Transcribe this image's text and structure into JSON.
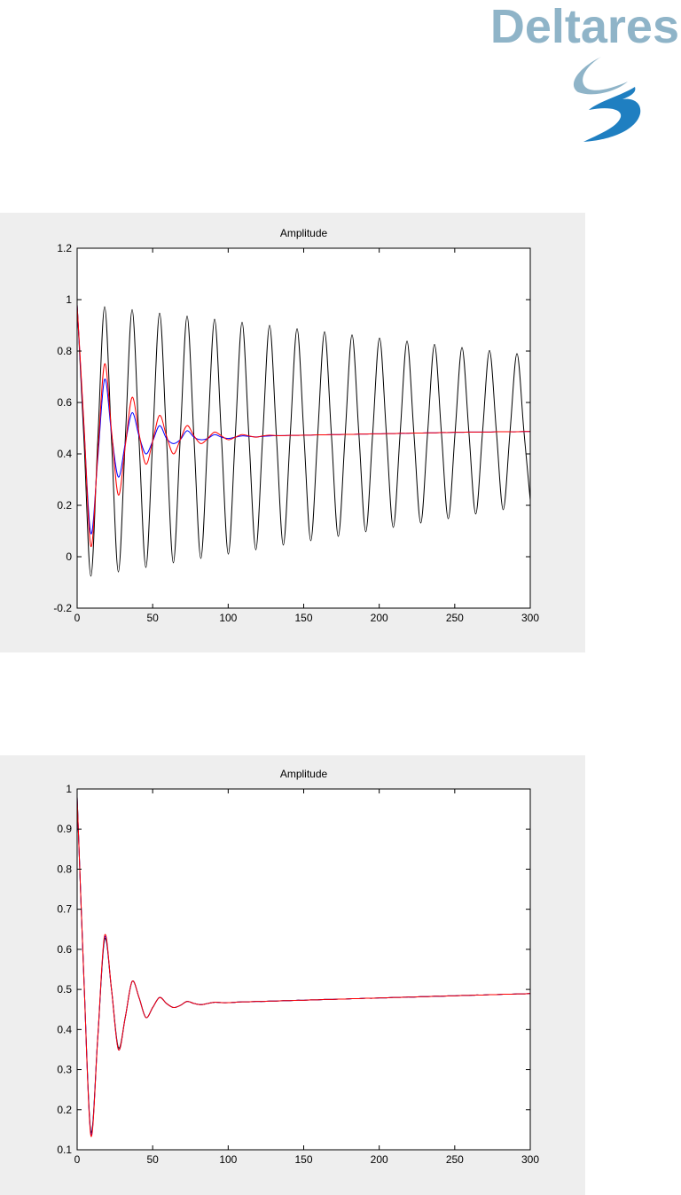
{
  "logo": {
    "text": "Deltares"
  },
  "chart_data": [
    {
      "type": "line",
      "title": "Amplitude",
      "x": [
        0,
        4.55,
        9.1,
        13.65,
        18.2,
        22.75,
        27.3,
        31.85,
        36.4,
        40.95,
        45.5,
        50.05,
        54.6,
        59.15,
        63.7,
        68.25,
        72.8,
        77.35,
        81.9,
        86.45,
        91,
        95.55,
        100.1,
        104.65,
        109.2,
        113.75,
        118.3,
        122.85,
        127.4,
        131.95,
        136.5,
        141.05,
        145.6,
        150.15,
        154.7,
        159.25,
        163.8,
        168.35,
        172.9,
        177.45,
        182,
        186.55,
        191.1,
        195.65,
        200.2,
        204.75,
        209.3,
        213.85,
        218.4,
        222.95,
        227.5,
        232.05,
        236.6,
        241.15,
        245.7,
        250.25,
        254.8,
        259.35,
        263.9,
        268.45,
        273,
        277.55,
        282.1,
        286.65,
        291.2,
        295.75,
        300
      ],
      "series": [
        {
          "color": "#000000",
          "values": [
            0.98,
            0.451,
            -0.076,
            0.452,
            0.973,
            0.453,
            -0.059,
            0.454,
            0.961,
            0.456,
            -0.042,
            0.457,
            0.948,
            0.458,
            -0.024,
            0.46,
            0.936,
            0.461,
            -0.007,
            0.462,
            0.924,
            0.463,
            0.01,
            0.465,
            0.912,
            0.466,
            0.027,
            0.467,
            0.9,
            0.468,
            0.045,
            0.47,
            0.887,
            0.471,
            0.062,
            0.472,
            0.875,
            0.474,
            0.079,
            0.475,
            0.863,
            0.476,
            0.097,
            0.477,
            0.851,
            0.479,
            0.114,
            0.48,
            0.839,
            0.481,
            0.131,
            0.482,
            0.826,
            0.484,
            0.148,
            0.485,
            0.814,
            0.486,
            0.166,
            0.488,
            0.802,
            0.489,
            0.183,
            0.49,
            0.79,
            0.491,
            0.22
          ]
        },
        {
          "color": "#0000ff",
          "values": [
            0.98,
            0.5,
            0.09,
            0.38,
            0.69,
            0.48,
            0.31,
            0.44,
            0.56,
            0.47,
            0.4,
            0.45,
            0.51,
            0.46,
            0.44,
            0.455,
            0.49,
            0.465,
            0.455,
            0.46,
            0.475,
            0.465,
            0.46,
            0.465,
            0.47,
            0.468,
            0.466,
            0.468,
            0.47,
            0.471,
            0.471,
            0.472,
            0.472,
            0.473,
            0.473,
            0.474,
            0.474,
            0.475,
            0.475,
            0.476,
            0.476,
            0.477,
            0.477,
            0.478,
            0.478,
            0.479,
            0.479,
            0.48,
            0.48,
            0.481,
            0.481,
            0.482,
            0.482,
            0.483,
            0.483,
            0.484,
            0.484,
            0.485,
            0.485,
            0.485,
            0.485,
            0.486,
            0.486,
            0.486,
            0.486,
            0.487,
            0.487
          ]
        },
        {
          "color": "#ff0000",
          "values": [
            0.98,
            0.51,
            0.04,
            0.4,
            0.75,
            0.49,
            0.24,
            0.43,
            0.62,
            0.48,
            0.36,
            0.45,
            0.55,
            0.47,
            0.4,
            0.455,
            0.51,
            0.47,
            0.44,
            0.46,
            0.485,
            0.47,
            0.455,
            0.465,
            0.475,
            0.47,
            0.465,
            0.47,
            0.473,
            0.471,
            0.471,
            0.472,
            0.472,
            0.473,
            0.473,
            0.474,
            0.474,
            0.475,
            0.475,
            0.476,
            0.476,
            0.477,
            0.477,
            0.478,
            0.478,
            0.479,
            0.479,
            0.48,
            0.48,
            0.481,
            0.481,
            0.482,
            0.482,
            0.483,
            0.483,
            0.484,
            0.484,
            0.485,
            0.485,
            0.485,
            0.485,
            0.486,
            0.486,
            0.486,
            0.486,
            0.487,
            0.487
          ]
        }
      ],
      "xlim": [
        0,
        300
      ],
      "xticks": [
        0,
        50,
        100,
        150,
        200,
        250,
        300
      ],
      "ylim": [
        -0.2,
        1.2
      ],
      "yticks": [
        -0.2,
        0,
        0.2,
        0.4,
        0.6,
        0.8,
        1,
        1.2
      ],
      "grid": false
    },
    {
      "type": "line",
      "title": "Amplitude",
      "x": [
        0,
        4.55,
        9.1,
        13.65,
        18.2,
        22.75,
        27.3,
        31.85,
        36.4,
        40.95,
        45.5,
        50.05,
        54.6,
        59.15,
        63.7,
        68.25,
        72.8,
        77.35,
        81.9,
        86.45,
        91,
        95.55,
        100.1,
        104.65,
        109.2,
        113.75,
        118.3,
        122.85,
        127.4,
        131.95,
        136.5,
        141.05,
        145.6,
        150.15,
        154.7,
        159.25,
        163.8,
        168.35,
        172.9,
        177.45,
        182,
        186.55,
        191.1,
        195.65,
        200.2,
        204.75,
        209.3,
        213.85,
        218.4,
        222.95,
        227.5,
        232.05,
        236.6,
        241.15,
        245.7,
        250.25,
        254.8,
        259.35,
        263.9,
        268.45,
        273,
        277.55,
        282.1,
        286.65,
        291.2,
        295.75,
        300
      ],
      "series": [
        {
          "color": "#000000",
          "values": [
            0.98,
            0.52,
            0.145,
            0.38,
            0.625,
            0.5,
            0.355,
            0.43,
            0.52,
            0.48,
            0.43,
            0.455,
            0.48,
            0.465,
            0.455,
            0.46,
            0.47,
            0.465,
            0.462,
            0.465,
            0.468,
            0.467,
            0.467,
            0.468,
            0.469,
            0.469,
            0.47,
            0.47,
            0.471,
            0.471,
            0.472,
            0.472,
            0.473,
            0.473,
            0.474,
            0.474,
            0.475,
            0.475,
            0.476,
            0.476,
            0.477,
            0.477,
            0.478,
            0.478,
            0.479,
            0.479,
            0.48,
            0.48,
            0.481,
            0.481,
            0.482,
            0.482,
            0.483,
            0.483,
            0.484,
            0.484,
            0.485,
            0.485,
            0.486,
            0.486,
            0.487,
            0.487,
            0.488,
            0.488,
            0.489,
            0.489,
            0.49
          ]
        },
        {
          "color": "#0000ff",
          "values": [
            0.98,
            0.52,
            0.14,
            0.38,
            0.63,
            0.5,
            0.35,
            0.43,
            0.52,
            0.48,
            0.43,
            0.455,
            0.48,
            0.465,
            0.455,
            0.46,
            0.47,
            0.465,
            0.462,
            0.465,
            0.468,
            0.467,
            0.467,
            0.468,
            0.469,
            0.469,
            0.47,
            0.47,
            0.471,
            0.471,
            0.472,
            0.472,
            0.473,
            0.473,
            0.474,
            0.474,
            0.475,
            0.475,
            0.476,
            0.476,
            0.477,
            0.477,
            0.478,
            0.478,
            0.479,
            0.479,
            0.48,
            0.48,
            0.481,
            0.481,
            0.482,
            0.482,
            0.483,
            0.483,
            0.484,
            0.484,
            0.485,
            0.485,
            0.486,
            0.486,
            0.487,
            0.487,
            0.488,
            0.488,
            0.489,
            0.489,
            0.49
          ]
        },
        {
          "color": "#ff0000",
          "values": [
            0.98,
            0.52,
            0.135,
            0.38,
            0.635,
            0.5,
            0.35,
            0.43,
            0.52,
            0.48,
            0.43,
            0.455,
            0.48,
            0.465,
            0.455,
            0.46,
            0.47,
            0.465,
            0.462,
            0.465,
            0.468,
            0.467,
            0.467,
            0.468,
            0.469,
            0.469,
            0.47,
            0.47,
            0.471,
            0.471,
            0.472,
            0.472,
            0.473,
            0.473,
            0.474,
            0.474,
            0.475,
            0.475,
            0.476,
            0.476,
            0.477,
            0.477,
            0.478,
            0.478,
            0.479,
            0.479,
            0.48,
            0.48,
            0.481,
            0.481,
            0.482,
            0.482,
            0.483,
            0.483,
            0.484,
            0.484,
            0.485,
            0.485,
            0.486,
            0.486,
            0.487,
            0.487,
            0.488,
            0.488,
            0.489,
            0.489,
            0.49
          ]
        }
      ],
      "xlim": [
        0,
        300
      ],
      "xticks": [
        0,
        50,
        100,
        150,
        200,
        250,
        300
      ],
      "ylim": [
        0.1,
        1
      ],
      "yticks": [
        0.1,
        0.2,
        0.3,
        0.4,
        0.5,
        0.6,
        0.7,
        0.8,
        0.9,
        1
      ],
      "grid": false
    }
  ]
}
